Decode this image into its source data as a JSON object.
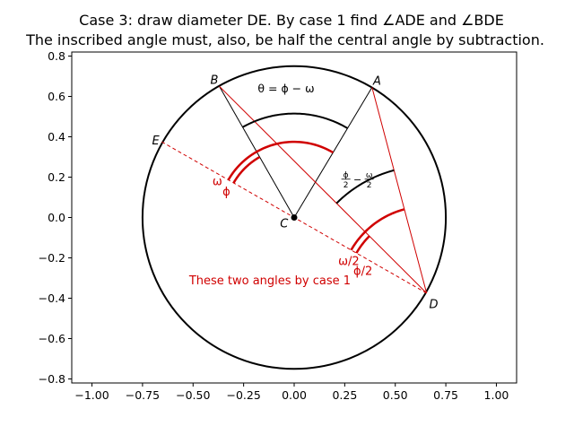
{
  "chart_data": {
    "type": "geometry-diagram",
    "title_line1": "Case 3: draw diameter DE. By case 1 find ∠ADE and ∠BDE",
    "title_line2": "The inscribed angle must, also, be half the central angle by subtraction.",
    "xlim": [
      -1.1,
      1.1
    ],
    "ylim": [
      -0.82,
      0.82
    ],
    "xticks": [
      -1.0,
      -0.75,
      -0.5,
      -0.25,
      0.0,
      0.25,
      0.5,
      0.75,
      1.0
    ],
    "xtick_labels": [
      "−1.00",
      "−0.75",
      "−0.50",
      "−0.25",
      "0.00",
      "0.25",
      "0.50",
      "0.75",
      "1.00"
    ],
    "yticks": [
      0.8,
      0.6,
      0.4,
      0.2,
      0.0,
      -0.2,
      -0.4,
      -0.6,
      -0.8
    ],
    "ytick_labels": [
      "0.8",
      "0.6",
      "0.4",
      "0.2",
      "0.0",
      "−0.2",
      "−0.4",
      "−0.6",
      "−0.8"
    ],
    "circle_radius": 0.75,
    "points": {
      "A": [
        0.385,
        0.645
      ],
      "B": [
        -0.37,
        0.65
      ],
      "C": [
        0.0,
        0.0
      ],
      "D": [
        0.655,
        -0.375
      ],
      "E": [
        -0.655,
        0.375
      ]
    },
    "point_labels": {
      "A": "A",
      "B": "B",
      "C": "C",
      "D": "D",
      "E": "E"
    },
    "labels": {
      "theta": "θ = ϕ − ω",
      "omega": "ω",
      "phi": "ϕ",
      "omega_half": "ω/2",
      "phi_half": "ϕ/2",
      "half_diff_phi": "ϕ",
      "half_diff_omega": "ω",
      "half_diff_den": "2",
      "half_diff_minus": "−",
      "case1_note": "These two angles by case 1"
    },
    "colors": {
      "black": "#000000",
      "red": "#d00000"
    }
  }
}
